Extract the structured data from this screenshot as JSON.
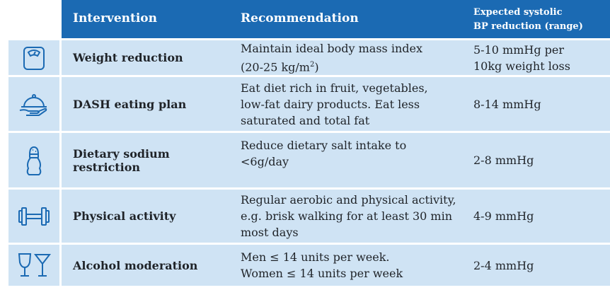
{
  "header": {
    "intervention": "Intervention",
    "recommendation": "Recommendation",
    "reduction_line1": "Expected systolic",
    "reduction_line2": "BP reduction (range)"
  },
  "rows": [
    {
      "icon": "scale-icon",
      "intervention": "Weight reduction",
      "recommendation": [
        "Maintain ideal body mass index",
        "(20-25 kg/m",
        "2",
        ")"
      ],
      "reduction": [
        "5-10 mmHg per",
        "10kg weight loss"
      ]
    },
    {
      "icon": "food-cloche-icon",
      "intervention": "DASH eating plan",
      "recommendation": [
        "Eat diet rich in fruit, vegetables,",
        "low-fat dairy products. Eat less",
        "saturated and total fat"
      ],
      "reduction": [
        "8-14 mmHg"
      ]
    },
    {
      "icon": "salt-shaker-icon",
      "intervention": "Dietary sodium restriction",
      "recommendation": [
        "Reduce dietary salt intake to",
        "<6g/day"
      ],
      "reduction": [
        "2-8 mmHg"
      ]
    },
    {
      "icon": "dumbbell-icon",
      "intervention": "Physical activity",
      "recommendation": [
        "Regular aerobic and physical activity,",
        "e.g. brisk walking for at least 30 min",
        "most days"
      ],
      "reduction": [
        "4-9 mmHg"
      ]
    },
    {
      "icon": "wine-glasses-icon",
      "intervention": "Alcohol moderation",
      "recommendation": [
        "Men ≤ 14 units per week.",
        "Women ≤ 14 units per week"
      ],
      "reduction": [
        "2-4 mmHg"
      ]
    }
  ],
  "colors": {
    "header_bg": "#1b6ab3",
    "row_bg": "#cfe3f4",
    "icon_stroke": "#1b6ab3"
  }
}
